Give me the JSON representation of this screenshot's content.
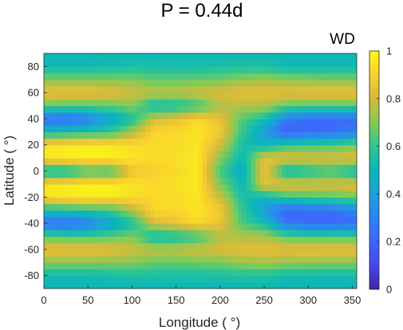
{
  "chart_data": {
    "type": "heatmap",
    "title": "P = 0.44d",
    "xlabel": "Longitude ( °)",
    "ylabel": "Latitude ( °)",
    "colorbar_label": "WD",
    "xlim": [
      0,
      355
    ],
    "ylim": [
      -90,
      90
    ],
    "clim": [
      0,
      1
    ],
    "colormap": "parula",
    "x_ticks": [
      "0",
      "50",
      "100",
      "150",
      "200",
      "250",
      "300",
      "350"
    ],
    "y_ticks": [
      "80",
      "60",
      "40",
      "20",
      "0",
      "-20",
      "-40",
      "-60",
      "-80"
    ],
    "colorbar_ticks": [
      "1",
      "0.8",
      "0.6",
      "0.4",
      "0.2",
      "0"
    ],
    "grid": false,
    "z_grid": {
      "x": [
        0,
        25,
        50,
        75,
        100,
        125,
        150,
        175,
        200,
        225,
        250,
        275,
        300,
        325,
        355
      ],
      "y": [
        -90,
        -80,
        -70,
        -60,
        -50,
        -40,
        -30,
        -20,
        -10,
        0,
        10,
        20,
        30,
        40,
        50,
        60,
        70,
        80,
        90
      ],
      "z": [
        [
          0.5,
          0.5,
          0.5,
          0.5,
          0.5,
          0.5,
          0.5,
          0.5,
          0.5,
          0.5,
          0.5,
          0.5,
          0.5,
          0.5,
          0.5
        ],
        [
          0.52,
          0.52,
          0.52,
          0.53,
          0.55,
          0.55,
          0.54,
          0.54,
          0.55,
          0.56,
          0.56,
          0.52,
          0.52,
          0.52,
          0.52
        ],
        [
          0.7,
          0.7,
          0.7,
          0.7,
          0.7,
          0.66,
          0.66,
          0.67,
          0.68,
          0.72,
          0.74,
          0.72,
          0.71,
          0.7,
          0.7
        ],
        [
          0.86,
          0.86,
          0.86,
          0.84,
          0.8,
          0.78,
          0.78,
          0.8,
          0.82,
          0.84,
          0.84,
          0.84,
          0.85,
          0.86,
          0.86
        ],
        [
          0.66,
          0.64,
          0.64,
          0.66,
          0.7,
          0.52,
          0.54,
          0.6,
          0.75,
          0.76,
          0.76,
          0.66,
          0.64,
          0.64,
          0.64
        ],
        [
          0.22,
          0.2,
          0.26,
          0.4,
          0.54,
          0.8,
          0.85,
          0.92,
          0.85,
          0.64,
          0.54,
          0.26,
          0.2,
          0.2,
          0.22
        ],
        [
          0.52,
          0.55,
          0.58,
          0.6,
          0.75,
          0.92,
          0.92,
          0.95,
          0.88,
          0.6,
          0.38,
          0.18,
          0.22,
          0.22,
          0.3
        ],
        [
          0.94,
          0.96,
          0.97,
          0.96,
          0.93,
          0.92,
          0.92,
          0.95,
          0.8,
          0.55,
          0.5,
          0.6,
          0.62,
          0.64,
          0.68
        ],
        [
          0.95,
          0.97,
          0.98,
          0.98,
          0.95,
          0.92,
          0.94,
          0.96,
          0.7,
          0.5,
          0.84,
          0.84,
          0.82,
          0.82,
          0.84
        ],
        [
          0.5,
          0.5,
          0.6,
          0.58,
          0.85,
          0.9,
          0.92,
          0.96,
          0.62,
          0.45,
          0.86,
          0.5,
          0.55,
          0.6,
          0.5
        ],
        [
          0.95,
          0.97,
          0.98,
          0.98,
          0.95,
          0.92,
          0.94,
          0.96,
          0.7,
          0.5,
          0.84,
          0.84,
          0.82,
          0.82,
          0.84
        ],
        [
          0.94,
          0.96,
          0.97,
          0.96,
          0.93,
          0.92,
          0.92,
          0.95,
          0.8,
          0.55,
          0.5,
          0.6,
          0.62,
          0.64,
          0.68
        ],
        [
          0.52,
          0.55,
          0.58,
          0.6,
          0.75,
          0.92,
          0.92,
          0.95,
          0.88,
          0.6,
          0.38,
          0.18,
          0.22,
          0.22,
          0.3
        ],
        [
          0.22,
          0.2,
          0.26,
          0.4,
          0.54,
          0.8,
          0.85,
          0.92,
          0.85,
          0.64,
          0.54,
          0.26,
          0.2,
          0.2,
          0.22
        ],
        [
          0.66,
          0.64,
          0.64,
          0.66,
          0.7,
          0.52,
          0.54,
          0.6,
          0.75,
          0.76,
          0.76,
          0.66,
          0.64,
          0.64,
          0.64
        ],
        [
          0.86,
          0.86,
          0.86,
          0.84,
          0.8,
          0.78,
          0.78,
          0.8,
          0.82,
          0.84,
          0.84,
          0.84,
          0.85,
          0.86,
          0.86
        ],
        [
          0.7,
          0.7,
          0.7,
          0.7,
          0.7,
          0.66,
          0.66,
          0.67,
          0.68,
          0.72,
          0.74,
          0.72,
          0.71,
          0.7,
          0.7
        ],
        [
          0.52,
          0.52,
          0.52,
          0.53,
          0.55,
          0.55,
          0.54,
          0.54,
          0.55,
          0.56,
          0.56,
          0.52,
          0.52,
          0.52,
          0.52
        ],
        [
          0.5,
          0.5,
          0.5,
          0.5,
          0.5,
          0.5,
          0.5,
          0.5,
          0.5,
          0.5,
          0.5,
          0.5,
          0.5,
          0.5,
          0.5
        ]
      ]
    }
  }
}
